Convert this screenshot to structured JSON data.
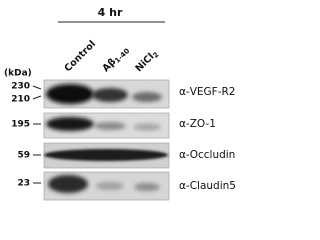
{
  "header": {
    "time": "4 hr"
  },
  "lanes": [
    {
      "text": "Control"
    },
    {
      "text": "Aβ",
      "subscript": "1-40"
    },
    {
      "text": "NiCl",
      "subscript": "2"
    }
  ],
  "unit": "(kDa)",
  "panels": [
    {
      "markers": [
        "230",
        "210"
      ],
      "antibody": "α-VEGF-R2"
    },
    {
      "markers": [
        "195"
      ],
      "antibody": "α-ZO-1"
    },
    {
      "markers": [
        "59"
      ],
      "antibody": "α-Occludin"
    },
    {
      "markers": [
        "23"
      ],
      "antibody": "α-Claudin5"
    }
  ]
}
